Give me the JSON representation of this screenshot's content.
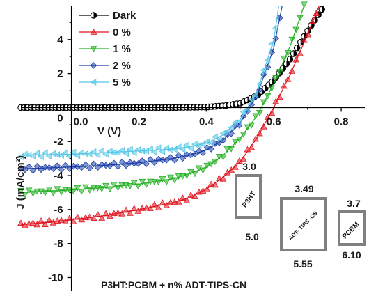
{
  "chart_data": {
    "type": "line",
    "xlabel": "V (V)",
    "ylabel": "J (mA/cm²)",
    "annotation": "P3HT:PCBM + n% ADT-TIPS-CN",
    "xlim": [
      -0.15,
      0.87
    ],
    "ylim": [
      -10.8,
      6.0
    ],
    "x_ticks": [
      "0.0",
      "0.2",
      "0.4",
      "0.6",
      "0.8"
    ],
    "y_ticks": [
      "-10",
      "-8",
      "-6",
      "-4",
      "-2",
      "0",
      "2",
      "4"
    ],
    "x_tick_values": [
      0.0,
      0.2,
      0.4,
      0.6,
      0.8
    ],
    "y_tick_values": [
      -10,
      -8,
      -6,
      -4,
      -2,
      0,
      2,
      4
    ],
    "legend_position": "top-left",
    "series": [
      {
        "name": "Dark",
        "color": "#000000",
        "marker": "half-circle",
        "x": [
          -0.15,
          0.0,
          0.1,
          0.2,
          0.3,
          0.4,
          0.45,
          0.5,
          0.55,
          0.6,
          0.65,
          0.7,
          0.75
        ],
        "y": [
          0.0,
          0.0,
          0.0,
          0.0,
          0.0,
          0.03,
          0.1,
          0.25,
          0.7,
          1.6,
          2.9,
          4.5,
          6.0
        ]
      },
      {
        "name": "0 %",
        "color": "#e0141e",
        "marker": "triangle-up",
        "x": [
          -0.15,
          0.0,
          0.1,
          0.2,
          0.3,
          0.35,
          0.4,
          0.45,
          0.5,
          0.55,
          0.6,
          0.65,
          0.7,
          0.735
        ],
        "y": [
          -6.9,
          -6.6,
          -6.35,
          -6.0,
          -5.6,
          -5.3,
          -4.8,
          -4.1,
          -3.2,
          -1.8,
          0.0,
          2.0,
          4.3,
          6.0
        ]
      },
      {
        "name": "1 %",
        "color": "#22b022",
        "marker": "triangle-down",
        "x": [
          -0.15,
          0.0,
          0.1,
          0.2,
          0.3,
          0.35,
          0.4,
          0.45,
          0.5,
          0.55,
          0.6,
          0.65,
          0.69
        ],
        "y": [
          -5.0,
          -4.85,
          -4.7,
          -4.5,
          -4.2,
          -3.9,
          -3.5,
          -2.8,
          -1.8,
          -0.5,
          1.4,
          3.7,
          6.0
        ]
      },
      {
        "name": "2 %",
        "color": "#1a3ea8",
        "marker": "diamond",
        "x": [
          -0.15,
          0.0,
          0.1,
          0.2,
          0.3,
          0.35,
          0.4,
          0.45,
          0.5,
          0.55,
          0.6,
          0.625
        ],
        "y": [
          -3.6,
          -3.5,
          -3.4,
          -3.25,
          -3.0,
          -2.8,
          -2.5,
          -1.9,
          -0.9,
          0.7,
          3.5,
          6.0
        ]
      },
      {
        "name": "5 %",
        "color": "#55c8e6",
        "marker": "triangle-left",
        "x": [
          -0.15,
          0.0,
          0.1,
          0.2,
          0.3,
          0.35,
          0.4,
          0.45,
          0.5,
          0.55,
          0.6,
          0.615
        ],
        "y": [
          -2.8,
          -2.75,
          -2.65,
          -2.55,
          -2.45,
          -2.3,
          -2.1,
          -1.6,
          -0.7,
          0.9,
          4.0,
          6.0
        ]
      }
    ]
  },
  "energy_levels": [
    {
      "name": "P3HT",
      "top": "3.0",
      "bottom": "5.0"
    },
    {
      "name": "ADT- TIPS -CN",
      "top": "3.49",
      "bottom": "5.55"
    },
    {
      "name": "PCBM",
      "top": "3.7",
      "bottom": "6.10"
    }
  ]
}
